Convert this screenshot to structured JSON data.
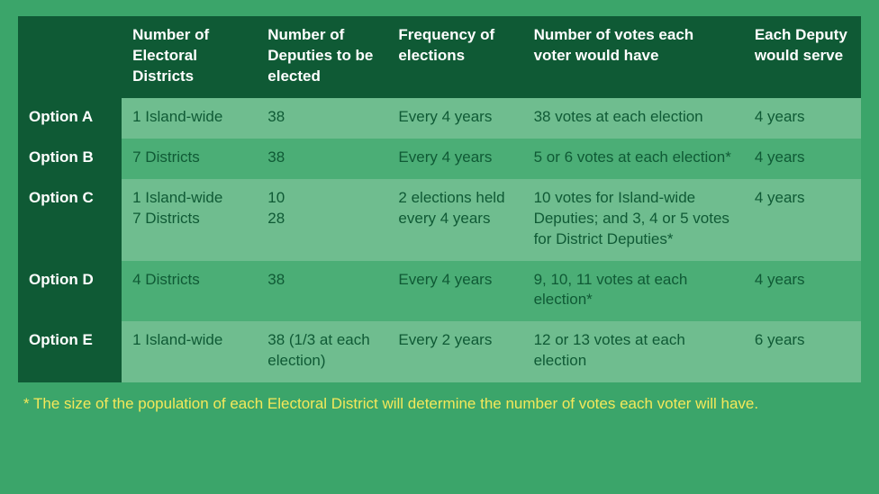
{
  "table": {
    "columns": [
      "Number of Electoral Districts",
      "Number of Deputies to be elected",
      "Frequency of elections",
      "Number of votes each voter would have",
      "Each Deputy would serve"
    ],
    "rows": [
      {
        "label": "Option A",
        "districts": "1 Island-wide",
        "deputies": "38",
        "frequency": "Every 4 years",
        "votes": "38 votes at each election",
        "term": "4 years",
        "shade": "light"
      },
      {
        "label": "Option B",
        "districts": "7 Districts",
        "deputies": "38",
        "frequency": "Every 4 years",
        "votes": "5 or 6 votes at each election*",
        "term": "4 years",
        "shade": "dark"
      },
      {
        "label": "Option C",
        "districts_lines": [
          "1 Island-wide",
          "7 Districts"
        ],
        "deputies_lines": [
          "10",
          "28"
        ],
        "frequency": "2 elections held every 4 years",
        "votes": "10 votes for Island-wide Deputies; and 3, 4 or 5 votes for District Deputies*",
        "term": "4 years",
        "shade": "light"
      },
      {
        "label": "Option D",
        "districts": "4 Districts",
        "deputies": "38",
        "frequency": "Every 4 years",
        "votes": "9, 10, 11 votes at each election*",
        "term": "4 years",
        "shade": "dark"
      },
      {
        "label": "Option E",
        "districts": "1 Island-wide",
        "deputies": "38 (1/3 at each election)",
        "frequency": "Every 2 years",
        "votes": "12 or 13 votes at each election",
        "term": "6 years",
        "shade": "light"
      }
    ]
  },
  "footnote": "*  The size of the population of each Electoral District will determine the number of votes each voter will have.",
  "colors": {
    "page_bg": "#3ba56a",
    "header_bg": "#0f5a35",
    "row_light": "#6fbd8f",
    "row_dark": "#4bae76",
    "header_text": "#ffffff",
    "cell_text": "#0f5a35",
    "footnote_text": "#f4e85a"
  }
}
